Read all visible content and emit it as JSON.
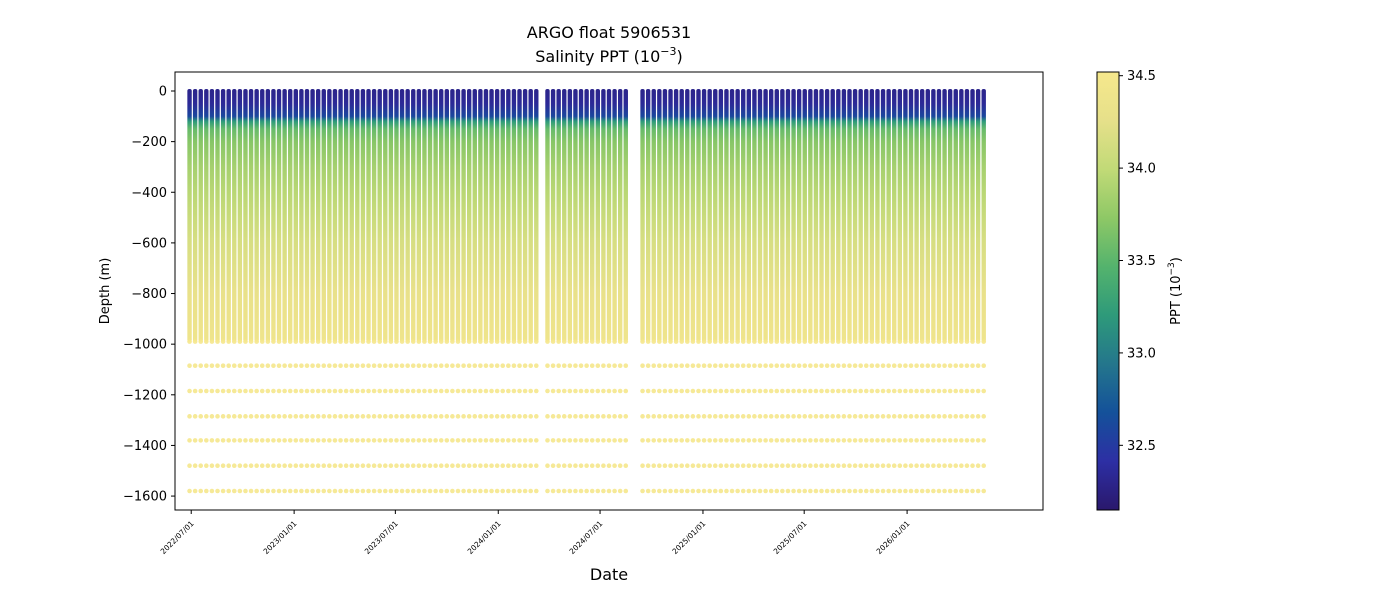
{
  "chart_data": {
    "type": "scatter",
    "title": "ARGO float 5906531",
    "subtitle_text": "Salinity PPT (10",
    "subtitle_exp": "−3",
    "subtitle_tail": ")",
    "xlabel": "Date",
    "ylabel": "Depth (m)",
    "ylim": [
      -1655,
      75
    ],
    "xlim": [
      "2022-06-02",
      "2026-09-01"
    ],
    "grid": false,
    "legend": "none",
    "x_ticks": [
      "2022/07/01",
      "2023/01/01",
      "2023/07/01",
      "2024/01/01",
      "2024/07/01",
      "2025/01/01",
      "2025/07/01",
      "2026/01/01"
    ],
    "y_ticks": [
      0,
      -200,
      -400,
      -600,
      -800,
      -1000,
      -1200,
      -1400,
      -1600
    ],
    "profiles": {
      "first_date": "2022-06-28",
      "last_date": "2026-05-20",
      "interval_days": 10,
      "gaps": [
        [
          "2024-03-11",
          "2024-03-25"
        ],
        [
          "2024-08-26",
          "2024-09-08"
        ]
      ]
    },
    "salinity_profile": {
      "depths": [
        0,
        -50,
        -100,
        -120,
        -150,
        -200,
        -300,
        -400,
        -500,
        -600,
        -800,
        -990
      ],
      "values": [
        32.3,
        32.35,
        32.6,
        33.2,
        33.55,
        33.7,
        33.85,
        33.95,
        34.05,
        34.15,
        34.3,
        34.4
      ]
    },
    "deep_levels": {
      "depths": [
        -990,
        -1085,
        -1185,
        -1285,
        -1380,
        -1480,
        -1580
      ],
      "value": 34.5
    },
    "colorbar": {
      "label_text": "PPT (10",
      "label_exp": "−3",
      "label_tail": ")",
      "range": [
        32.15,
        34.52
      ],
      "ticks": [
        32.5,
        33.0,
        33.5,
        34.0,
        34.5
      ],
      "tick_labels": [
        "32.5",
        "33.0",
        "33.5",
        "34.0",
        "34.5"
      ],
      "colors": [
        "#2a186c",
        "#2d2fa4",
        "#14519a",
        "#24768c",
        "#2e9a7a",
        "#54b36d",
        "#8ec866",
        "#c1da77",
        "#e6e08a",
        "#f6e88c"
      ]
    }
  }
}
